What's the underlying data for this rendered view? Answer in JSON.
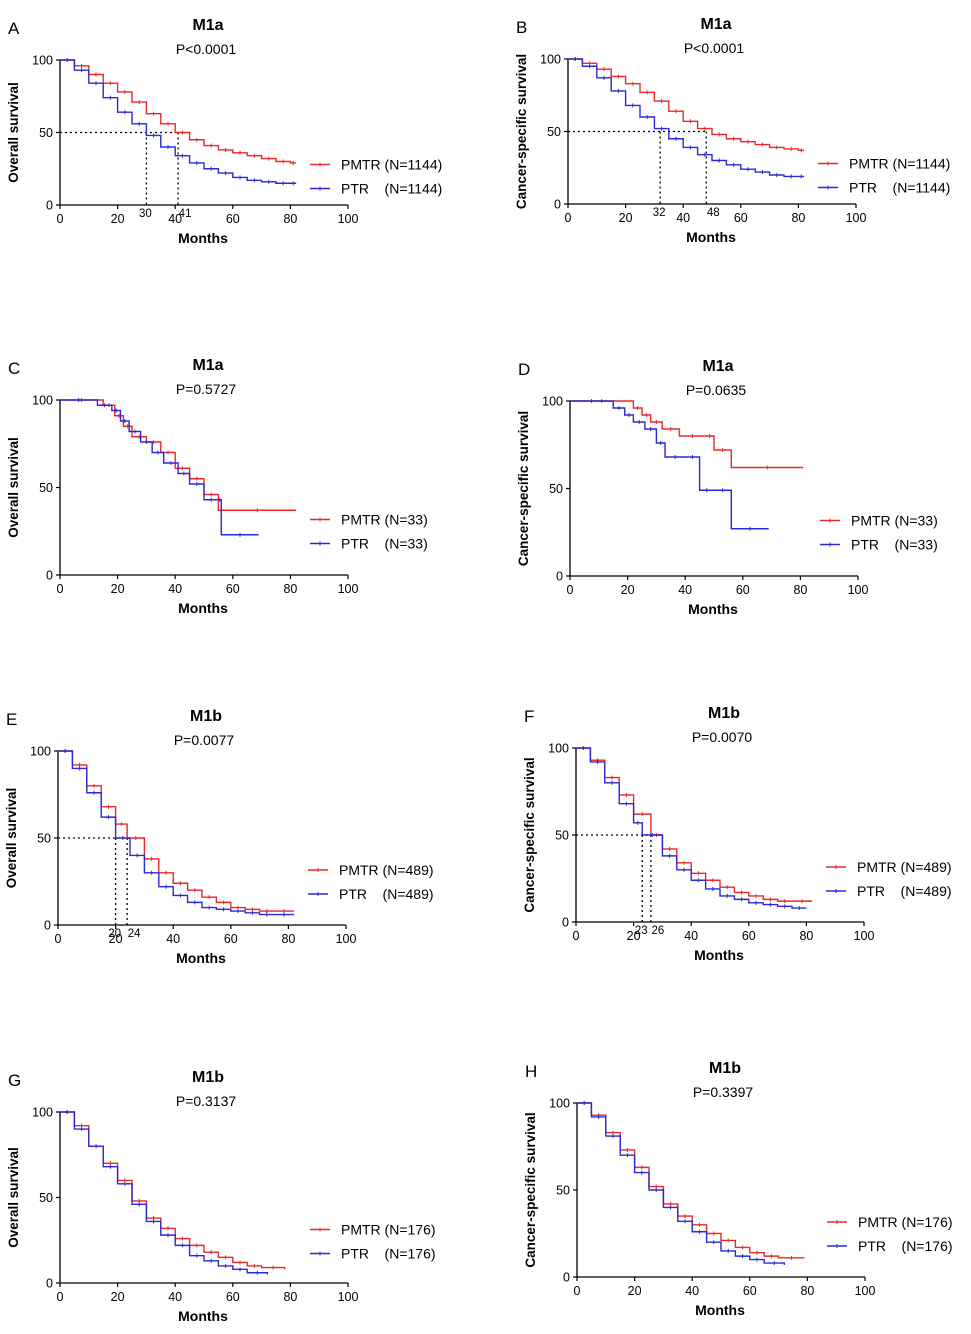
{
  "colors": {
    "pmtr": "#e8292a",
    "ptr": "#2a2ad6",
    "axis": "#000000"
  },
  "chart_data": [
    {
      "panel_letter": "A",
      "type": "line",
      "title": "M1a",
      "p_value": "P<0.0001",
      "xlabel": "Months",
      "ylabel": "Overall survival",
      "xlim": [
        0,
        100
      ],
      "ylim": [
        0,
        100
      ],
      "xticks": [
        "0",
        "20",
        "40",
        "60",
        "80",
        "100"
      ],
      "yticks": [
        "0",
        "50",
        "100"
      ],
      "median_labels": [
        "30",
        "41"
      ],
      "median_values": [
        30,
        41
      ],
      "median_line": true,
      "legend": [
        "PMTR (N=1144)",
        "PTR    (N=1144)"
      ],
      "series": [
        {
          "name": "PMTR",
          "x": [
            0,
            5,
            10,
            15,
            20,
            25,
            30,
            35,
            40,
            45,
            50,
            55,
            60,
            65,
            70,
            75,
            80,
            82
          ],
          "y": [
            100,
            96,
            90,
            84,
            78,
            71,
            63,
            56,
            50,
            45,
            41,
            38,
            36,
            34,
            32,
            30,
            29,
            29
          ]
        },
        {
          "name": "PTR",
          "x": [
            0,
            5,
            10,
            15,
            20,
            25,
            30,
            35,
            40,
            45,
            50,
            55,
            60,
            65,
            70,
            75,
            80,
            82
          ],
          "y": [
            100,
            93,
            84,
            74,
            64,
            56,
            48,
            40,
            34,
            29,
            25,
            22,
            19,
            17,
            16,
            15,
            15,
            15
          ]
        }
      ]
    },
    {
      "panel_letter": "B",
      "type": "line",
      "title": "M1a",
      "p_value": "P<0.0001",
      "xlabel": "Months",
      "ylabel": "Cancer-specific survival",
      "xlim": [
        0,
        100
      ],
      "ylim": [
        0,
        100
      ],
      "xticks": [
        "0",
        "20",
        "40",
        "60",
        "80",
        "100"
      ],
      "yticks": [
        "0",
        "50",
        "100"
      ],
      "median_labels": [
        "32",
        "48"
      ],
      "median_values": [
        32,
        48
      ],
      "median_line": true,
      "legend": [
        "PMTR (N=1144)",
        "PTR    (N=1144)"
      ],
      "series": [
        {
          "name": "PMTR",
          "x": [
            0,
            5,
            10,
            15,
            20,
            25,
            30,
            35,
            40,
            45,
            50,
            55,
            60,
            65,
            70,
            75,
            80,
            82
          ],
          "y": [
            100,
            97,
            93,
            88,
            83,
            77,
            71,
            64,
            57,
            52,
            48,
            45,
            43,
            41,
            39,
            38,
            37,
            37
          ]
        },
        {
          "name": "PTR",
          "x": [
            0,
            5,
            10,
            15,
            20,
            25,
            30,
            35,
            40,
            45,
            50,
            55,
            60,
            65,
            70,
            75,
            80,
            82
          ],
          "y": [
            100,
            95,
            87,
            78,
            68,
            60,
            52,
            45,
            39,
            34,
            30,
            27,
            24,
            22,
            20,
            19,
            19,
            19
          ]
        }
      ]
    },
    {
      "panel_letter": "C",
      "type": "line",
      "title": "M1a",
      "p_value": "P=0.5727",
      "xlabel": "Months",
      "ylabel": "Overall survival",
      "xlim": [
        0,
        100
      ],
      "ylim": [
        0,
        100
      ],
      "xticks": [
        "0",
        "20",
        "40",
        "60",
        "80",
        "100"
      ],
      "yticks": [
        "0",
        "50",
        "100"
      ],
      "median_labels": [],
      "median_values": [],
      "median_line": false,
      "legend": [
        "PMTR (N=33)",
        "PTR    (N=33)"
      ],
      "series": [
        {
          "name": "PMTR",
          "x": [
            0,
            15,
            19,
            22,
            25,
            30,
            35,
            40,
            45,
            50,
            55,
            82
          ],
          "y": [
            100,
            97,
            91,
            85,
            79,
            76,
            70,
            61,
            55,
            46,
            37,
            37
          ]
        },
        {
          "name": "PTR",
          "x": [
            0,
            13,
            18,
            21,
            24,
            28,
            32,
            36,
            41,
            45,
            50,
            55,
            56,
            69
          ],
          "y": [
            100,
            97,
            94,
            88,
            82,
            76,
            70,
            64,
            58,
            52,
            43,
            43,
            23,
            23
          ]
        }
      ]
    },
    {
      "panel_letter": "D",
      "type": "line",
      "title": "M1a",
      "p_value": "P=0.0635",
      "xlabel": "Months",
      "ylabel": "Cancer-specific survival",
      "xlim": [
        0,
        100
      ],
      "ylim": [
        0,
        100
      ],
      "xticks": [
        "0",
        "20",
        "40",
        "60",
        "80",
        "100"
      ],
      "yticks": [
        "0",
        "50",
        "100"
      ],
      "median_labels": [],
      "median_values": [],
      "median_line": false,
      "legend": [
        "PMTR (N=33)",
        "PTR    (N=33)"
      ],
      "series": [
        {
          "name": "PMTR",
          "x": [
            0,
            22,
            25,
            28,
            32,
            38,
            47,
            50,
            56,
            81
          ],
          "y": [
            100,
            96,
            92,
            88,
            84,
            80,
            80,
            72,
            62,
            62
          ]
        },
        {
          "name": "PTR",
          "x": [
            0,
            15,
            19,
            22,
            26,
            30,
            33,
            40,
            45,
            50,
            56,
            69
          ],
          "y": [
            100,
            96,
            92,
            88,
            84,
            76,
            68,
            68,
            49,
            49,
            27,
            27
          ]
        }
      ]
    },
    {
      "panel_letter": "E",
      "type": "line",
      "title": "M1b",
      "p_value": "P=0.0077",
      "xlabel": "Months",
      "ylabel": "Overall survival",
      "xlim": [
        0,
        100
      ],
      "ylim": [
        0,
        100
      ],
      "xticks": [
        "0",
        "20",
        "40",
        "60",
        "80",
        "100"
      ],
      "yticks": [
        "0",
        "50",
        "100"
      ],
      "median_labels": [
        "20",
        "24"
      ],
      "median_values": [
        20,
        24
      ],
      "median_line": true,
      "legend": [
        "PMTR (N=489)",
        "PTR    (N=489)"
      ],
      "series": [
        {
          "name": "PMTR",
          "x": [
            0,
            5,
            10,
            15,
            20,
            24,
            30,
            35,
            40,
            45,
            50,
            55,
            60,
            65,
            70,
            75,
            82
          ],
          "y": [
            100,
            92,
            80,
            68,
            58,
            50,
            38,
            30,
            24,
            20,
            16,
            13,
            10,
            9,
            8,
            8,
            8
          ]
        },
        {
          "name": "PTR",
          "x": [
            0,
            5,
            10,
            15,
            20,
            25,
            30,
            35,
            40,
            45,
            50,
            55,
            60,
            65,
            70,
            75,
            82
          ],
          "y": [
            100,
            90,
            76,
            62,
            50,
            40,
            30,
            22,
            17,
            13,
            10,
            9,
            8,
            7,
            6,
            6,
            6
          ]
        }
      ]
    },
    {
      "panel_letter": "F",
      "type": "line",
      "title": "M1b",
      "p_value": "P=0.0070",
      "xlabel": "Months",
      "ylabel": "Cancer-specific survival",
      "xlim": [
        0,
        100
      ],
      "ylim": [
        0,
        100
      ],
      "xticks": [
        "0",
        "20",
        "40",
        "60",
        "80",
        "100"
      ],
      "yticks": [
        "0",
        "50",
        "100"
      ],
      "median_labels": [
        "23",
        "26"
      ],
      "median_values": [
        23,
        26
      ],
      "median_line": true,
      "legend": [
        "PMTR (N=489)",
        "PTR    (N=489)"
      ],
      "series": [
        {
          "name": "PMTR",
          "x": [
            0,
            5,
            10,
            15,
            20,
            26,
            30,
            35,
            40,
            45,
            50,
            55,
            60,
            65,
            70,
            75,
            82
          ],
          "y": [
            100,
            93,
            83,
            73,
            62,
            50,
            42,
            34,
            28,
            24,
            20,
            17,
            15,
            13,
            12,
            12,
            12
          ]
        },
        {
          "name": "PTR",
          "x": [
            0,
            5,
            10,
            15,
            20,
            23,
            30,
            35,
            40,
            45,
            50,
            55,
            60,
            65,
            70,
            75,
            80
          ],
          "y": [
            100,
            92,
            80,
            68,
            57,
            50,
            38,
            30,
            24,
            19,
            15,
            13,
            11,
            10,
            9,
            8,
            8
          ]
        }
      ]
    },
    {
      "panel_letter": "G",
      "type": "line",
      "title": "M1b",
      "p_value": "P=0.3137",
      "xlabel": "Months",
      "ylabel": "Overall survival",
      "xlim": [
        0,
        100
      ],
      "ylim": [
        0,
        100
      ],
      "xticks": [
        "0",
        "20",
        "40",
        "60",
        "80",
        "100"
      ],
      "yticks": [
        "0",
        "50",
        "100"
      ],
      "median_labels": [],
      "median_values": [],
      "median_line": false,
      "legend": [
        "PMTR (N=176)",
        "PTR    (N=176)"
      ],
      "series": [
        {
          "name": "PMTR",
          "x": [
            0,
            5,
            10,
            15,
            20,
            25,
            30,
            35,
            40,
            45,
            50,
            55,
            60,
            65,
            70,
            78
          ],
          "y": [
            100,
            92,
            80,
            70,
            60,
            48,
            38,
            32,
            26,
            22,
            18,
            15,
            12,
            10,
            9,
            8
          ]
        },
        {
          "name": "PTR",
          "x": [
            0,
            5,
            10,
            15,
            20,
            25,
            30,
            35,
            40,
            45,
            50,
            55,
            60,
            65,
            72
          ],
          "y": [
            100,
            90,
            80,
            68,
            58,
            46,
            36,
            28,
            22,
            16,
            13,
            10,
            8,
            6,
            5
          ]
        }
      ]
    },
    {
      "panel_letter": "H",
      "type": "line",
      "title": "M1b",
      "p_value": "P=0.3397",
      "xlabel": "Months",
      "ylabel": "Cancer-specific survival",
      "xlim": [
        0,
        100
      ],
      "ylim": [
        0,
        100
      ],
      "xticks": [
        "0",
        "20",
        "40",
        "60",
        "80",
        "100"
      ],
      "yticks": [
        "0",
        "50",
        "100"
      ],
      "median_labels": [],
      "median_values": [],
      "median_line": false,
      "legend": [
        "PMTR (N=176)",
        "PTR    (N=176)"
      ],
      "series": [
        {
          "name": "PMTR",
          "x": [
            0,
            5,
            10,
            15,
            20,
            25,
            30,
            35,
            40,
            45,
            50,
            55,
            60,
            65,
            70,
            79
          ],
          "y": [
            100,
            93,
            83,
            73,
            63,
            52,
            42,
            35,
            30,
            25,
            21,
            17,
            14,
            12,
            11,
            11
          ]
        },
        {
          "name": "PTR",
          "x": [
            0,
            5,
            10,
            15,
            20,
            25,
            30,
            35,
            40,
            45,
            50,
            55,
            60,
            65,
            72
          ],
          "y": [
            100,
            92,
            81,
            70,
            60,
            50,
            40,
            32,
            26,
            20,
            15,
            12,
            10,
            8,
            7
          ]
        }
      ]
    }
  ]
}
